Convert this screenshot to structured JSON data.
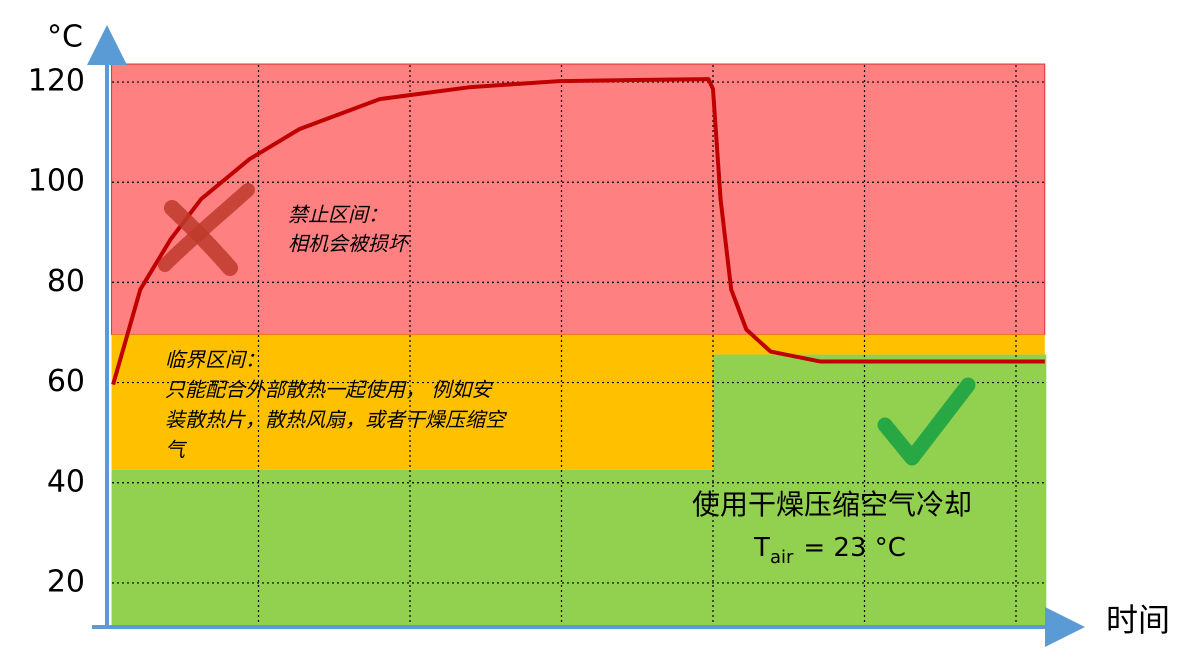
{
  "chart_data": {
    "type": "line",
    "y_label": "°C",
    "x_label": "时间",
    "ylim": [
      11.2,
      128
    ],
    "yticks": [
      20,
      40,
      60,
      80,
      100,
      120
    ],
    "xlim": [
      0,
      6.3
    ],
    "grid": true,
    "zones": [
      {
        "x": [
          0.03,
          6.19
        ],
        "y": [
          69.6,
          123.6
        ],
        "color": "#ff8080"
      },
      {
        "x": [
          0.03,
          4.0
        ],
        "y": [
          42.6,
          69.6
        ],
        "color": "#ffc000"
      },
      {
        "x": [
          4.0,
          6.19
        ],
        "y": [
          65.6,
          69.6
        ],
        "color": "#ffc000"
      },
      {
        "x": [
          0.03,
          4.0
        ],
        "y": [
          11.2,
          42.6
        ],
        "color": "#92d050"
      },
      {
        "x": [
          4.0,
          6.2
        ],
        "y": [
          11.2,
          65.6
        ],
        "color": "#92d050"
      }
    ],
    "series": [
      {
        "color": "#c00000",
        "x": [
          0.04,
          0.22,
          0.42,
          0.62,
          0.94,
          1.27,
          1.8,
          2.4,
          2.99,
          3.97,
          4.0,
          4.05,
          4.12,
          4.22,
          4.38,
          4.71,
          6.19
        ],
        "values": [
          59.6,
          78.6,
          88.6,
          96.6,
          104.6,
          110.6,
          116.6,
          119,
          120.2,
          120.6,
          118.6,
          96.6,
          78.6,
          70.6,
          66.2,
          64.2,
          64.2
        ]
      }
    ],
    "annotations": {
      "forbidden": [
        "禁止区间：",
        "相机会被损坏"
      ],
      "critical": [
        "临界区间：",
        "只能配合外部散热一起使用， 例如安",
        "装散热片，散热风扇，或者干燥压缩空",
        "气"
      ],
      "cooling": "使用干燥压缩空气冷却",
      "t_symbol": "T",
      "t_subscript": "air",
      "t_value": "= 23 °C"
    }
  }
}
